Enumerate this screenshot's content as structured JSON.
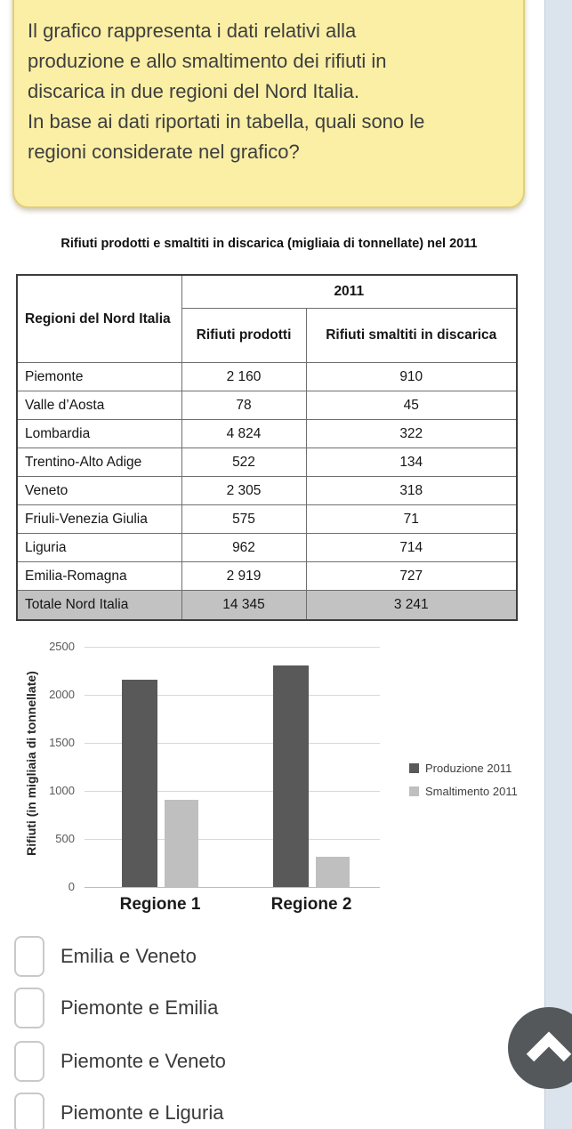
{
  "question": {
    "lines": [
      "Il grafico rappresenta i dati relativi alla",
      "produzione e allo smaltimento dei rifiuti in",
      "discarica in due regioni del Nord Italia.",
      "In base ai dati riportati in tabella, quali sono le",
      "regioni considerate nel grafico?"
    ]
  },
  "table": {
    "title": "Rifiuti prodotti e smaltiti in discarica (migliaia di tonnellate) nel 2011",
    "header": {
      "region_col": "Regioni del Nord Italia",
      "year": "2011",
      "produced_col": "Rifiuti prodotti",
      "disposed_col": "Rifiuti smaltiti in discarica"
    },
    "rows": [
      {
        "region": "Piemonte",
        "prodotti": "2 160",
        "smaltiti": "910"
      },
      {
        "region": "Valle d’Aosta",
        "prodotti": "78",
        "smaltiti": "45"
      },
      {
        "region": "Lombardia",
        "prodotti": "4 824",
        "smaltiti": "322"
      },
      {
        "region": "Trentino-Alto Adige",
        "prodotti": "522",
        "smaltiti": "134"
      },
      {
        "region": "Veneto",
        "prodotti": "2 305",
        "smaltiti": "318"
      },
      {
        "region": "Friuli-Venezia Giulia",
        "prodotti": "575",
        "smaltiti": "71"
      },
      {
        "region": "Liguria",
        "prodotti": "962",
        "smaltiti": "714"
      },
      {
        "region": "Emilia-Romagna",
        "prodotti": "2 919",
        "smaltiti": "727"
      }
    ],
    "total": {
      "region": "Totale Nord Italia",
      "prodotti": "14 345",
      "smaltiti": "3 241"
    }
  },
  "chart_data": {
    "type": "bar",
    "categories": [
      "Regione 1",
      "Regione 2"
    ],
    "series": [
      {
        "name": "Produzione 2011",
        "values": [
          2160,
          2305
        ],
        "color": "#595959"
      },
      {
        "name": "Smaltimento 2011",
        "values": [
          910,
          318
        ],
        "color": "#bfbfbf"
      }
    ],
    "title": "",
    "xlabel": "",
    "ylabel": "Rifiuti (in migliaia di tonnellate)",
    "yticks": [
      0,
      500,
      1000,
      1500,
      2000,
      2500
    ],
    "ylim": [
      0,
      2500
    ],
    "grid": true,
    "legend_position": "right"
  },
  "options": [
    {
      "label": "Emilia e Veneto"
    },
    {
      "label": "Piemonte e Emilia"
    },
    {
      "label": "Piemonte e Veneto"
    },
    {
      "label": "Piemonte e Liguria"
    }
  ],
  "icons": {
    "scroll_top": "chevron-up-icon"
  },
  "colors": {
    "card_bg": "#faefa4",
    "card_border": "#e2cf78",
    "total_row_bg": "#c2c2c2",
    "bar_dark": "#595959",
    "bar_light": "#bfbfbf",
    "side_strip": "#dbe4ec",
    "scroll_button": "#54585b"
  }
}
